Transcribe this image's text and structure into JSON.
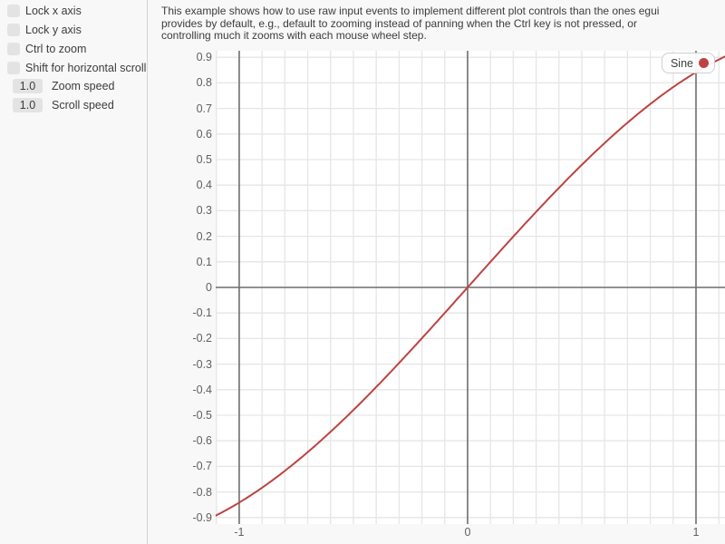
{
  "colors": {
    "window_bg": "#f8f8f8",
    "plot_bg": "#ffffff",
    "grid_minor": "#e6e6e6",
    "grid_major": "#6f6f6f",
    "text": "#3c3c3c",
    "tick_text": "#606060",
    "widget_fill": "#e3e3e3",
    "separator": "#d2d2d2",
    "series_red": "#bd4343"
  },
  "sidebar": {
    "checkboxes": [
      {
        "label": "Lock x axis",
        "checked": false
      },
      {
        "label": "Lock y axis",
        "checked": false
      },
      {
        "label": "Ctrl to zoom",
        "checked": false
      },
      {
        "label": "Shift for horizontal scroll",
        "checked": false
      }
    ],
    "drags": [
      {
        "value": "1.0",
        "label": "Zoom speed"
      },
      {
        "value": "1.0",
        "label": "Scroll speed"
      }
    ]
  },
  "main": {
    "description_lines": [
      "This example shows how to use raw input events to implement different plot controls than the ones egui",
      "provides by default, e.g., default to zooming instead of panning when the Ctrl key is not pressed, or",
      "controlling much it zooms with each mouse wheel step."
    ]
  },
  "chart_data": {
    "type": "line",
    "title": "",
    "xlabel": "",
    "ylabel": "",
    "x_range": [
      -1.103,
      1.127
    ],
    "y_range": [
      -0.9255,
      0.9255
    ],
    "minor_step": 0.1,
    "grid": true,
    "major_x": [
      -1,
      0,
      1
    ],
    "major_y": [
      0
    ],
    "x_ticks": [
      {
        "v": -1,
        "label": "-1"
      },
      {
        "v": 0,
        "label": "0"
      },
      {
        "v": 1,
        "label": "1"
      }
    ],
    "y_ticks": [
      {
        "v": 0.9,
        "label": "0.9"
      },
      {
        "v": 0.8,
        "label": "0.8"
      },
      {
        "v": 0.7,
        "label": "0.7"
      },
      {
        "v": 0.6,
        "label": "0.6"
      },
      {
        "v": 0.5,
        "label": "0.5"
      },
      {
        "v": 0.4,
        "label": "0.4"
      },
      {
        "v": 0.3,
        "label": "0.3"
      },
      {
        "v": 0.2,
        "label": "0.2"
      },
      {
        "v": 0.1,
        "label": "0.1"
      },
      {
        "v": 0,
        "label": "0"
      },
      {
        "v": -0.1,
        "label": "-0.1"
      },
      {
        "v": -0.2,
        "label": "-0.2"
      },
      {
        "v": -0.3,
        "label": "-0.3"
      },
      {
        "v": -0.4,
        "label": "-0.4"
      },
      {
        "v": -0.5,
        "label": "-0.5"
      },
      {
        "v": -0.6,
        "label": "-0.6"
      },
      {
        "v": -0.7,
        "label": "-0.7"
      },
      {
        "v": -0.8,
        "label": "-0.8"
      },
      {
        "v": -0.9,
        "label": "-0.9"
      }
    ],
    "series": [
      {
        "name": "Sine",
        "color": "#bd4343",
        "fn": "sin",
        "x_min": -1.103,
        "x_max": 1.127,
        "step": 0.01,
        "key_points": [
          [
            -1,
            -0.841
          ],
          [
            -0.5,
            -0.479
          ],
          [
            0,
            0
          ],
          [
            0.5,
            0.479
          ],
          [
            1,
            0.841
          ]
        ]
      }
    ],
    "legend": {
      "label": "Sine",
      "position": "right-top"
    }
  }
}
